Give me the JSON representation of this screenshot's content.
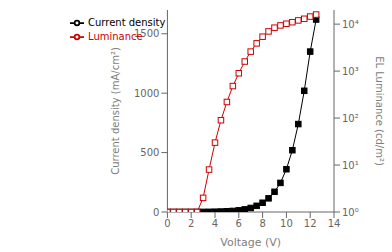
{
  "chart_data": {
    "type": "line",
    "xlabel": "Voltage (V)",
    "ylabel": "Current density (mA/cm²)",
    "y2label": "EL Luminance (cd/m²)",
    "x": [
      0.0,
      0.5,
      1.0,
      1.5,
      2.0,
      2.5,
      3.0,
      3.5,
      4.0,
      4.5,
      5.0,
      5.5,
      6.0,
      6.5,
      7.0,
      7.5,
      8.0,
      8.5,
      9.0,
      9.5,
      10.0,
      10.5,
      11.0,
      11.5,
      12.0,
      12.5
    ],
    "series": [
      {
        "name": "Current density",
        "color": "#000000",
        "marker": "square",
        "line_style": "solid",
        "values": [
          0.3,
          0.3,
          0.4,
          0.5,
          0.6,
          0.8,
          1.0,
          1.5,
          2.5,
          4.0,
          6.0,
          9.0,
          14.0,
          22.0,
          34.0,
          52.0,
          78.0,
          115.0,
          170.0,
          245.0,
          360.0,
          520.0,
          740.0,
          1020.0,
          1350.0,
          1620.0
        ]
      },
      {
        "name": "Luminance",
        "color": "#cc0000",
        "marker": "square_open",
        "line_style": "solid",
        "axis": "y2",
        "values": [
          1.0,
          1.0,
          1.0,
          1.0,
          1.0,
          1.0,
          2.0,
          8.0,
          30.0,
          90.0,
          220.0,
          480.0,
          900.0,
          1600.0,
          2600.0,
          3900.0,
          5400.0,
          7000.0,
          8400.0,
          9400.0,
          10200.0,
          11000.0,
          12000.0,
          13000.0,
          14500.0,
          16000.0
        ]
      }
    ],
    "xlim": [
      0,
      14
    ],
    "xticks": [
      0,
      2,
      4,
      6,
      8,
      10,
      12,
      14
    ],
    "ylim": [
      0,
      1700
    ],
    "yticks": [
      0,
      500,
      1000,
      1500
    ],
    "y2lim": [
      1,
      20000
    ],
    "y2ticks": [
      {
        "value": 1,
        "label": "10⁰"
      },
      {
        "value": 10,
        "label": "10¹"
      },
      {
        "value": 100,
        "label": "10²"
      },
      {
        "value": 1000,
        "label": "10³"
      },
      {
        "value": 10000,
        "label": "10⁴"
      }
    ],
    "log": "y2",
    "legend": "upper left",
    "grid": false
  }
}
